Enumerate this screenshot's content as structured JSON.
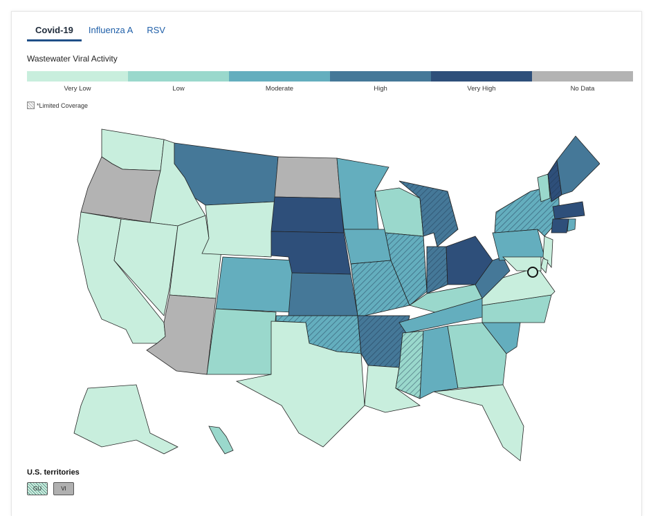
{
  "tabs": [
    {
      "label": "Covid-19",
      "active": true
    },
    {
      "label": "Influenza A",
      "active": false
    },
    {
      "label": "RSV",
      "active": false
    }
  ],
  "legend": {
    "title": "Wastewater Viral Activity",
    "levels": [
      {
        "label": "Very Low",
        "color": "#c8eedd"
      },
      {
        "label": "Low",
        "color": "#9ad8cc"
      },
      {
        "label": "Moderate",
        "color": "#64aebe"
      },
      {
        "label": "High",
        "color": "#457898"
      },
      {
        "label": "Very High",
        "color": "#2e4f7a"
      },
      {
        "label": "No Data",
        "color": "#b3b3b3"
      }
    ],
    "limited_coverage_label": "*Limited Coverage"
  },
  "states": [
    {
      "name": "WA",
      "level": "Very Low",
      "limited": false
    },
    {
      "name": "OR",
      "level": "No Data",
      "limited": false
    },
    {
      "name": "CA",
      "level": "Very Low",
      "limited": false
    },
    {
      "name": "ID",
      "level": "Very Low",
      "limited": false
    },
    {
      "name": "NV",
      "level": "Very Low",
      "limited": false
    },
    {
      "name": "UT",
      "level": "Very Low",
      "limited": false
    },
    {
      "name": "AZ",
      "level": "No Data",
      "limited": false
    },
    {
      "name": "MT",
      "level": "High",
      "limited": false
    },
    {
      "name": "WY",
      "level": "Very Low",
      "limited": false
    },
    {
      "name": "CO",
      "level": "Moderate",
      "limited": false
    },
    {
      "name": "NM",
      "level": "Low",
      "limited": false
    },
    {
      "name": "ND",
      "level": "No Data",
      "limited": false
    },
    {
      "name": "SD",
      "level": "Very High",
      "limited": false
    },
    {
      "name": "NE",
      "level": "Very High",
      "limited": false
    },
    {
      "name": "KS",
      "level": "High",
      "limited": false
    },
    {
      "name": "OK",
      "level": "Moderate",
      "limited": true
    },
    {
      "name": "TX",
      "level": "Very Low",
      "limited": false
    },
    {
      "name": "MN",
      "level": "Moderate",
      "limited": false
    },
    {
      "name": "IA",
      "level": "Moderate",
      "limited": false
    },
    {
      "name": "MO",
      "level": "Moderate",
      "limited": true
    },
    {
      "name": "AR",
      "level": "High",
      "limited": true
    },
    {
      "name": "LA",
      "level": "Very Low",
      "limited": false
    },
    {
      "name": "WI",
      "level": "Low",
      "limited": false
    },
    {
      "name": "IL",
      "level": "Moderate",
      "limited": true
    },
    {
      "name": "MI",
      "level": "High",
      "limited": true
    },
    {
      "name": "IN",
      "level": "High",
      "limited": true
    },
    {
      "name": "OH",
      "level": "Very High",
      "limited": false
    },
    {
      "name": "KY",
      "level": "Low",
      "limited": false
    },
    {
      "name": "TN",
      "level": "Moderate",
      "limited": false
    },
    {
      "name": "MS",
      "level": "Low",
      "limited": true
    },
    {
      "name": "AL",
      "level": "Moderate",
      "limited": false
    },
    {
      "name": "GA",
      "level": "Low",
      "limited": false
    },
    {
      "name": "FL",
      "level": "Very Low",
      "limited": false
    },
    {
      "name": "SC",
      "level": "Moderate",
      "limited": false
    },
    {
      "name": "NC",
      "level": "Low",
      "limited": false
    },
    {
      "name": "VA",
      "level": "Very Low",
      "limited": false
    },
    {
      "name": "WV",
      "level": "High",
      "limited": false
    },
    {
      "name": "PA",
      "level": "Moderate",
      "limited": false
    },
    {
      "name": "NY",
      "level": "Moderate",
      "limited": true
    },
    {
      "name": "NJ",
      "level": "Very Low",
      "limited": false
    },
    {
      "name": "DE",
      "level": "Very Low",
      "limited": false
    },
    {
      "name": "MD",
      "level": "Very Low",
      "limited": false
    },
    {
      "name": "DC",
      "level": "Very Low",
      "limited": false
    },
    {
      "name": "CT",
      "level": "Very High",
      "limited": false
    },
    {
      "name": "RI",
      "level": "Moderate",
      "limited": false
    },
    {
      "name": "MA",
      "level": "Very High",
      "limited": false
    },
    {
      "name": "VT",
      "level": "Low",
      "limited": false
    },
    {
      "name": "NH",
      "level": "Very High",
      "limited": true
    },
    {
      "name": "ME",
      "level": "High",
      "limited": false
    },
    {
      "name": "AK",
      "level": "Very Low",
      "limited": false
    },
    {
      "name": "HI",
      "level": "Low",
      "limited": false
    }
  ],
  "territories": {
    "title": "U.S. territories",
    "items": [
      {
        "label": "GU",
        "level": "Low",
        "limited": true
      },
      {
        "label": "VI",
        "level": "No Data",
        "limited": false
      }
    ]
  }
}
